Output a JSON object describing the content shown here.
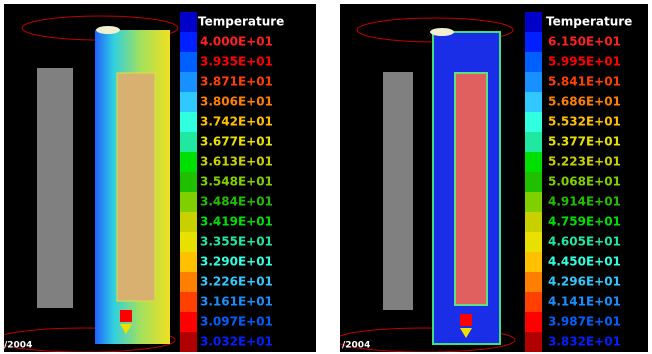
{
  "panels": [
    {
      "legend_title": "Temperature",
      "timestamp": "/2004",
      "labels": [
        "4.000E+01",
        "3.935E+01",
        "3.871E+01",
        "3.806E+01",
        "3.742E+01",
        "3.677E+01",
        "3.613E+01",
        "3.548E+01",
        "3.484E+01",
        "3.419E+01",
        "3.355E+01",
        "3.290E+01",
        "3.226E+01",
        "3.161E+01",
        "3.097E+01",
        "3.032E+01"
      ]
    },
    {
      "legend_title": "Temperature",
      "timestamp": "/2004",
      "labels": [
        "6.150E+01",
        "5.995E+01",
        "5.841E+01",
        "5.686E+01",
        "5.532E+01",
        "5.377E+01",
        "5.223E+01",
        "5.068E+01",
        "4.914E+01",
        "4.759E+01",
        "4.605E+01",
        "4.450E+01",
        "4.296E+01",
        "4.141E+01",
        "3.987E+01",
        "3.832E+01"
      ]
    }
  ]
}
